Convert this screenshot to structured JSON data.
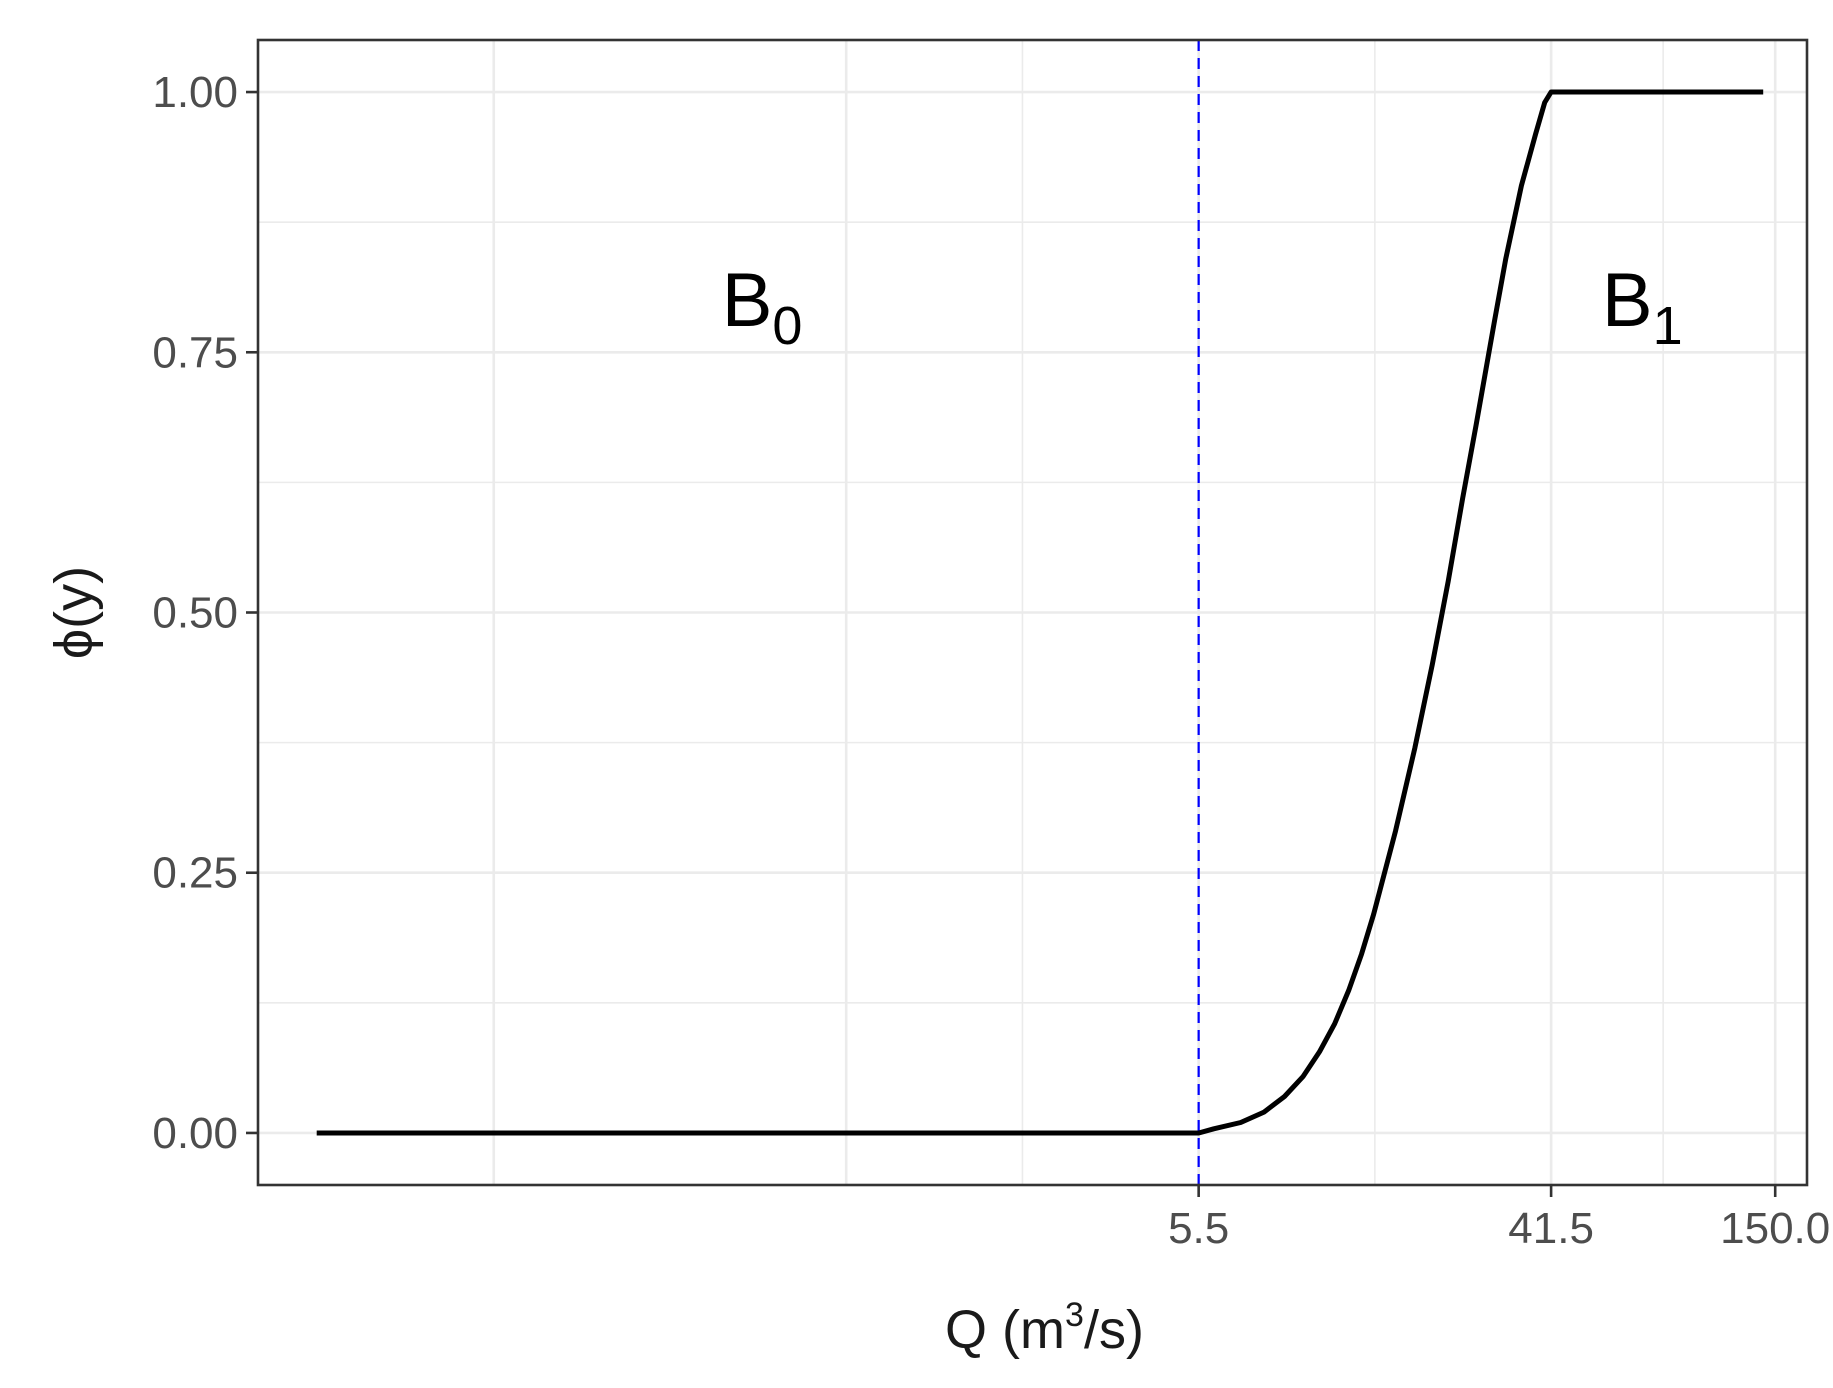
{
  "chart_data": {
    "type": "line",
    "title": "",
    "xlabel": {
      "main": "Q (m",
      "sup": "3",
      "tail": "/s)"
    },
    "ylabel": "ϕ(y)",
    "x_scale": "log",
    "xlim": [
      0.025,
      180
    ],
    "ylim": [
      -0.05,
      1.05
    ],
    "x_ticks": [
      5.5,
      41.5,
      150.0
    ],
    "x_tick_labels": [
      "5.5",
      "41.5",
      "150.0"
    ],
    "y_ticks": [
      0,
      0.25,
      0.5,
      0.75,
      1.0
    ],
    "y_tick_labels": [
      "0.00",
      "0.25",
      "0.50",
      "0.75",
      "1.00"
    ],
    "grid": true,
    "threshold": {
      "x": 5.5,
      "color": "#0000ff",
      "style": "dashed"
    },
    "regions": [
      {
        "base": "B",
        "sub": "0",
        "x": 0.45,
        "y": 0.8
      },
      {
        "base": "B",
        "sub": "1",
        "x": 70,
        "y": 0.8
      }
    ],
    "series": [
      {
        "color": "#000000",
        "x": [
          0.035,
          0.1,
          0.5,
          1,
          2,
          5.5,
          6,
          7,
          8,
          9,
          10,
          11,
          12,
          13,
          14,
          15,
          17,
          19,
          21,
          23,
          25,
          27,
          30,
          32,
          35,
          38,
          40,
          41.5,
          60,
          80,
          100,
          120,
          140
        ],
        "y": [
          0,
          0,
          0,
          0,
          0,
          0,
          0.004,
          0.01,
          0.02,
          0.035,
          0.054,
          0.078,
          0.105,
          0.137,
          0.172,
          0.21,
          0.29,
          0.37,
          0.45,
          0.53,
          0.61,
          0.68,
          0.78,
          0.84,
          0.91,
          0.96,
          0.99,
          1.0,
          1.0,
          1.0,
          1.0,
          1.0,
          1.0
        ]
      }
    ]
  }
}
